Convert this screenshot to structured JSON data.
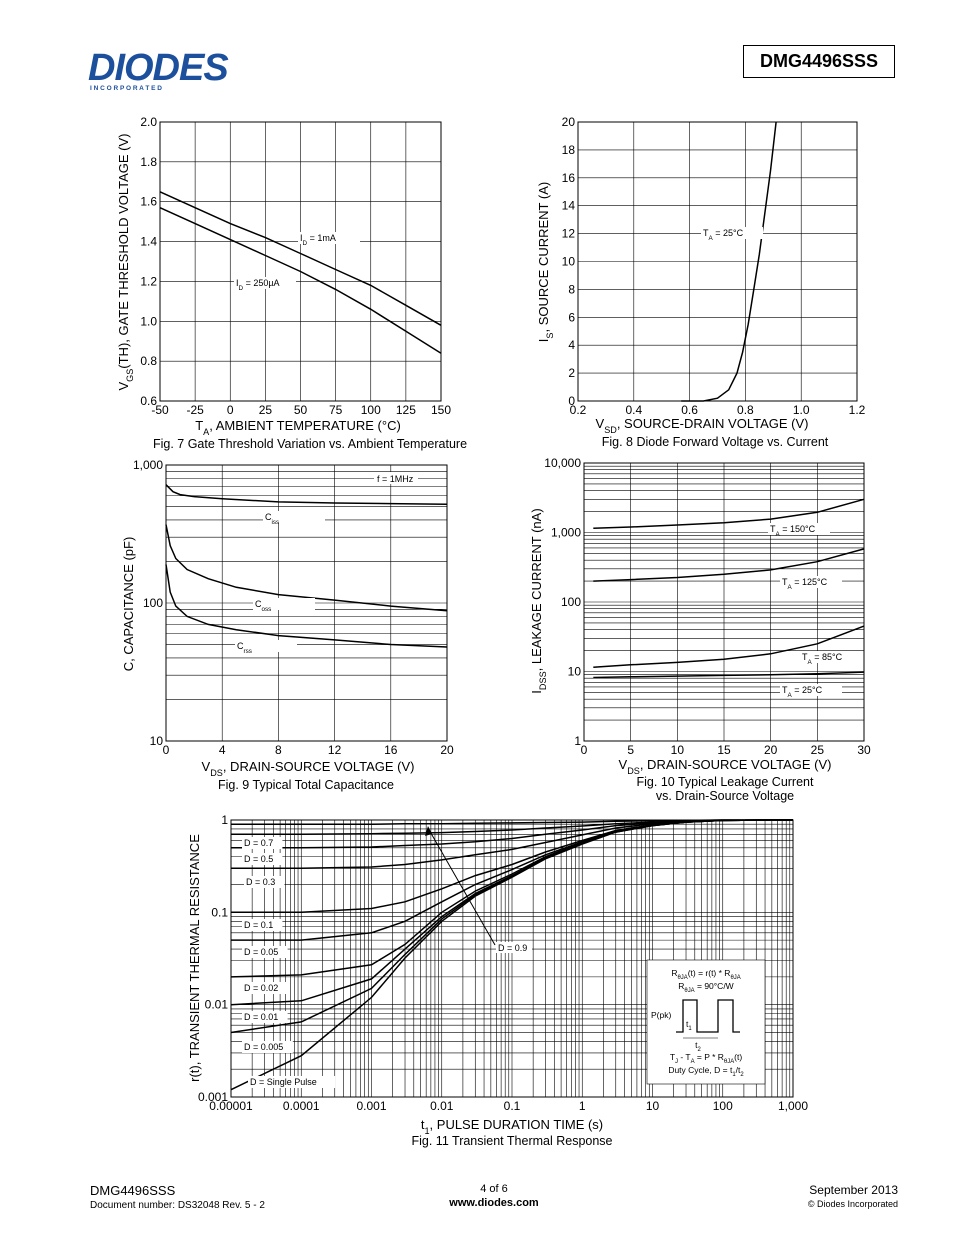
{
  "header": {
    "logo_text": "DIODES",
    "logo_sub": "I N C O R P O R A T E D",
    "part_number": "DMG4496SSS"
  },
  "footer": {
    "part": "DMG4496SSS",
    "doc": "Document number: DS32048 Rev. 5 - 2",
    "page": "4 of 6",
    "url": "www.diodes.com",
    "date": "September 2013",
    "copyright": "© Diodes Incorporated"
  },
  "chart_data": [
    {
      "id": "fig7",
      "type": "line",
      "caption": "Fig. 7 Gate Threshold Variation vs. Ambient Temperature",
      "xlabel": "T_A, AMBIENT TEMPERATURE (°C)",
      "ylabel": "V_GS(TH), GATE THRESHOLD VOLTAGE (V)",
      "xlim": [
        -50,
        150
      ],
      "ylim": [
        0.6,
        2.0
      ],
      "xticks": [
        "-50",
        "-25",
        "0",
        "25",
        "50",
        "75",
        "100",
        "125",
        "150"
      ],
      "yticks": [
        "0.6",
        "0.8",
        "1.0",
        "1.2",
        "1.4",
        "1.6",
        "1.8",
        "2.0"
      ],
      "grid": true,
      "series": [
        {
          "name": "I_D = 1mA",
          "x": [
            -50,
            -25,
            0,
            25,
            50,
            75,
            100,
            125,
            150
          ],
          "y": [
            1.65,
            1.57,
            1.49,
            1.42,
            1.34,
            1.26,
            1.18,
            1.08,
            0.98
          ]
        },
        {
          "name": "I_D = 250µA",
          "x": [
            -50,
            -25,
            0,
            25,
            50,
            75,
            100,
            125,
            150
          ],
          "y": [
            1.57,
            1.49,
            1.41,
            1.33,
            1.25,
            1.16,
            1.06,
            0.95,
            0.84
          ]
        }
      ]
    },
    {
      "id": "fig8",
      "type": "line",
      "caption": "Fig. 8 Diode Forward Voltage vs. Current",
      "xlabel": "V_SD, SOURCE-DRAIN VOLTAGE (V)",
      "ylabel": "I_S, SOURCE CURRENT (A)",
      "xlim": [
        0.2,
        1.2
      ],
      "ylim": [
        0,
        20
      ],
      "xticks": [
        "0.2",
        "0.4",
        "0.6",
        "0.8",
        "1.0",
        "1.2"
      ],
      "yticks": [
        "0",
        "2",
        "4",
        "6",
        "8",
        "10",
        "12",
        "14",
        "16",
        "18",
        "20"
      ],
      "grid": true,
      "series": [
        {
          "name": "T_A = 25°C",
          "x": [
            0.57,
            0.65,
            0.7,
            0.74,
            0.77,
            0.79,
            0.81,
            0.83,
            0.85,
            0.87,
            0.89,
            0.91
          ],
          "y": [
            0,
            0,
            0.2,
            0.8,
            2,
            3.5,
            5.5,
            8,
            10.5,
            13.5,
            16.5,
            20
          ]
        }
      ]
    },
    {
      "id": "fig9",
      "type": "line",
      "caption": "Fig. 9 Typical Total Capacitance",
      "xlabel": "V_DS, DRAIN-SOURCE VOLTAGE (V)",
      "ylabel": "C, CAPACITANCE (pF)",
      "xlim": [
        0,
        20
      ],
      "ylim": [
        10,
        1000
      ],
      "yscale": "log",
      "xticks": [
        "0",
        "4",
        "8",
        "12",
        "16",
        "20"
      ],
      "yticks": [
        "10",
        "100",
        "1,000"
      ],
      "grid": true,
      "annotation": "f = 1MHz",
      "series": [
        {
          "name": "C_iss",
          "x": [
            0,
            0.5,
            1,
            2,
            4,
            8,
            12,
            16,
            20
          ],
          "y": [
            720,
            640,
            610,
            590,
            570,
            540,
            530,
            525,
            520
          ]
        },
        {
          "name": "C_oss",
          "x": [
            0,
            0.3,
            0.7,
            1.5,
            3,
            5,
            8,
            12,
            16,
            20
          ],
          "y": [
            370,
            260,
            210,
            175,
            150,
            130,
            115,
            105,
            95,
            88
          ]
        },
        {
          "name": "C_rss",
          "x": [
            0,
            0.3,
            0.7,
            1.5,
            3,
            5,
            8,
            12,
            16,
            20
          ],
          "y": [
            190,
            120,
            95,
            80,
            70,
            64,
            58,
            54,
            50,
            48
          ]
        }
      ]
    },
    {
      "id": "fig10",
      "type": "line",
      "caption": "Fig. 10 Typical Leakage Current vs. Drain-Source Voltage",
      "xlabel": "V_DS, DRAIN-SOURCE VOLTAGE (V)",
      "ylabel": "I_DSS, LEAKAGE CURRENT (nA)",
      "xlim": [
        0,
        30
      ],
      "ylim": [
        1,
        10000
      ],
      "yscale": "log",
      "xticks": [
        "0",
        "5",
        "10",
        "15",
        "20",
        "25",
        "30"
      ],
      "yticks": [
        "1",
        "10",
        "100",
        "1,000",
        "10,000"
      ],
      "grid": true,
      "series": [
        {
          "name": "T_A = 150°C",
          "x": [
            1,
            5,
            10,
            15,
            20,
            25,
            30
          ],
          "y": [
            1150,
            1200,
            1280,
            1380,
            1560,
            1950,
            3000
          ]
        },
        {
          "name": "T_A = 125°C",
          "x": [
            1,
            5,
            10,
            15,
            20,
            25,
            30
          ],
          "y": [
            200,
            210,
            225,
            250,
            290,
            380,
            580
          ]
        },
        {
          "name": "T_A = 85°C",
          "x": [
            1,
            5,
            10,
            15,
            20,
            25,
            30
          ],
          "y": [
            11.5,
            12.5,
            13.5,
            15,
            18,
            25,
            45
          ]
        },
        {
          "name": "T_A = 25°C",
          "x": [
            1,
            5,
            10,
            15,
            20,
            25,
            30
          ],
          "y": [
            8.2,
            8.4,
            8.6,
            8.8,
            9.0,
            9.3,
            9.8
          ]
        }
      ]
    },
    {
      "id": "fig11",
      "type": "line",
      "caption": "Fig. 11 Transient Thermal Response",
      "xlabel": "t_1, PULSE DURATION TIME (s)",
      "ylabel": "r(t), TRANSIENT THERMAL RESISTANCE",
      "xlim": [
        1e-05,
        1000
      ],
      "ylim": [
        0.001,
        1
      ],
      "xscale": "log",
      "yscale": "log",
      "xticks": [
        "0.00001",
        "0.0001",
        "0.001",
        "0.01",
        "0.1",
        "1",
        "10",
        "100",
        "1,000"
      ],
      "yticks": [
        "0.001",
        "0.01",
        "0.1",
        "1"
      ],
      "grid": true,
      "x": [
        1e-05,
        0.0001,
        0.001,
        0.003,
        0.01,
        0.03,
        0.1,
        0.3,
        1,
        3,
        10,
        30,
        100,
        1000
      ],
      "series": [
        {
          "name": "D = 0.9",
          "values": [
            0.9,
            0.9,
            0.9,
            0.91,
            0.91,
            0.92,
            0.93,
            0.94,
            0.95,
            0.97,
            0.98,
            0.99,
            1,
            1
          ]
        },
        {
          "name": "D = 0.7",
          "values": [
            0.7,
            0.7,
            0.71,
            0.72,
            0.73,
            0.75,
            0.78,
            0.82,
            0.86,
            0.91,
            0.95,
            0.98,
            1,
            1
          ]
        },
        {
          "name": "D = 0.5",
          "values": [
            0.5,
            0.5,
            0.51,
            0.53,
            0.55,
            0.58,
            0.63,
            0.7,
            0.78,
            0.87,
            0.93,
            0.97,
            0.99,
            1
          ]
        },
        {
          "name": "D = 0.3",
          "values": [
            0.3,
            0.3,
            0.31,
            0.33,
            0.37,
            0.42,
            0.48,
            0.57,
            0.69,
            0.82,
            0.91,
            0.96,
            0.99,
            1
          ]
        },
        {
          "name": "D = 0.1",
          "values": [
            0.1,
            0.1,
            0.11,
            0.13,
            0.18,
            0.25,
            0.33,
            0.45,
            0.6,
            0.77,
            0.89,
            0.96,
            0.99,
            1
          ]
        },
        {
          "name": "D = 0.05",
          "values": [
            0.05,
            0.05,
            0.06,
            0.08,
            0.13,
            0.2,
            0.29,
            0.42,
            0.58,
            0.76,
            0.88,
            0.95,
            0.99,
            1
          ]
        },
        {
          "name": "D = 0.02",
          "values": [
            0.02,
            0.021,
            0.027,
            0.045,
            0.1,
            0.17,
            0.26,
            0.4,
            0.57,
            0.75,
            0.88,
            0.95,
            0.99,
            1
          ]
        },
        {
          "name": "D = 0.01",
          "values": [
            0.01,
            0.011,
            0.019,
            0.04,
            0.09,
            0.16,
            0.25,
            0.39,
            0.56,
            0.75,
            0.87,
            0.95,
            0.99,
            1
          ]
        },
        {
          "name": "D = 0.005",
          "values": [
            0.005,
            0.0065,
            0.015,
            0.035,
            0.085,
            0.155,
            0.245,
            0.385,
            0.56,
            0.74,
            0.87,
            0.95,
            0.99,
            1
          ]
        },
        {
          "name": "D = Single Pulse",
          "values": [
            0.0012,
            0.0028,
            0.012,
            0.032,
            0.08,
            0.15,
            0.24,
            0.38,
            0.55,
            0.74,
            0.87,
            0.95,
            0.99,
            1
          ]
        }
      ],
      "inset": {
        "line1": "R_θJA(t) = r(t) * R_θJA",
        "line2": "R_θJA = 90°C/W",
        "ppk": "P(pk)",
        "t1": "t_1",
        "t2": "t_2",
        "line3": "T_J - T_A = P * R_θJA(t)",
        "line4": "Duty Cycle, D = t_1/t_2"
      }
    }
  ]
}
